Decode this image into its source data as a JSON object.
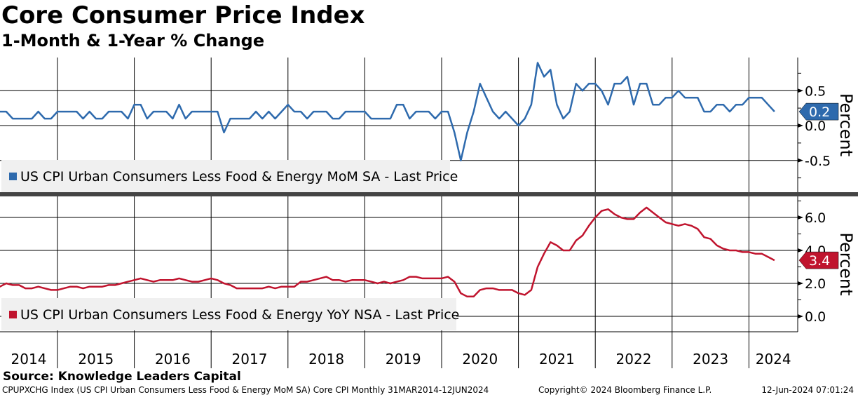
{
  "title": "Core Consumer Price Index",
  "subtitle": "1-Month & 1-Year % Change",
  "source": "Source: Knowledge Leaders Capital",
  "footer": {
    "left": "CPUPXCHG Index (US CPI Urban Consumers Less Food & Energy MoM SA) Core CPI  Monthly 31MAR2014-12JUN2024",
    "center": "Copyright© 2024 Bloomberg Finance L.P.",
    "right": "12-Jun-2024 07:01:24"
  },
  "chart_data": [
    {
      "type": "line",
      "start": "2014-03",
      "frequency": "monthly",
      "ylabel": "Percent",
      "ylim": [
        -1.0,
        1.0
      ],
      "yticks": [
        "0.5",
        "0.0",
        "-0.5"
      ],
      "ytick_values": [
        0.5,
        0.0,
        -0.5
      ],
      "color": "#2e6aad",
      "legend": "US CPI Urban Consumers Less Food & Energy MoM SA - Last Price",
      "last_label": "0.2",
      "values": [
        0.2,
        0.2,
        0.2,
        0.1,
        0.1,
        0.1,
        0.1,
        0.2,
        0.1,
        0.1,
        0.2,
        0.2,
        0.2,
        0.2,
        0.1,
        0.2,
        0.1,
        0.1,
        0.2,
        0.2,
        0.2,
        0.1,
        0.3,
        0.3,
        0.1,
        0.2,
        0.2,
        0.2,
        0.1,
        0.3,
        0.1,
        0.2,
        0.2,
        0.2,
        0.2,
        0.2,
        -0.1,
        0.1,
        0.1,
        0.1,
        0.1,
        0.2,
        0.1,
        0.2,
        0.1,
        0.2,
        0.3,
        0.2,
        0.2,
        0.1,
        0.2,
        0.2,
        0.2,
        0.1,
        0.1,
        0.2,
        0.2,
        0.2,
        0.2,
        0.1,
        0.1,
        0.1,
        0.1,
        0.3,
        0.3,
        0.1,
        0.2,
        0.2,
        0.2,
        0.1,
        0.2,
        0.2,
        -0.1,
        -0.5,
        -0.1,
        0.2,
        0.6,
        0.4,
        0.2,
        0.1,
        0.2,
        0.1,
        0.0,
        0.1,
        0.3,
        0.9,
        0.7,
        0.8,
        0.3,
        0.1,
        0.2,
        0.6,
        0.5,
        0.6,
        0.6,
        0.5,
        0.3,
        0.6,
        0.6,
        0.7,
        0.3,
        0.6,
        0.6,
        0.3,
        0.3,
        0.4,
        0.4,
        0.5,
        0.4,
        0.4,
        0.4,
        0.2,
        0.2,
        0.3,
        0.3,
        0.2,
        0.3,
        0.3,
        0.4,
        0.4,
        0.4,
        0.3,
        0.2
      ]
    },
    {
      "type": "line",
      "start": "2014-03",
      "frequency": "monthly",
      "ylabel": "Percent",
      "ylim": [
        -1.0,
        7.2
      ],
      "yticks": [
        "6.0",
        "4.0",
        "2.0",
        "0.0"
      ],
      "ytick_values": [
        6,
        4,
        2,
        0
      ],
      "color": "#c0142e",
      "legend": "US CPI Urban Consumers Less Food & Energy YoY NSA - Last Price",
      "last_label": "3.4",
      "values": [
        1.7,
        1.8,
        2.0,
        1.9,
        1.9,
        1.7,
        1.7,
        1.8,
        1.7,
        1.6,
        1.6,
        1.7,
        1.8,
        1.8,
        1.7,
        1.8,
        1.8,
        1.8,
        1.9,
        1.9,
        2.0,
        2.1,
        2.2,
        2.3,
        2.2,
        2.1,
        2.2,
        2.2,
        2.2,
        2.3,
        2.2,
        2.1,
        2.1,
        2.2,
        2.3,
        2.2,
        2.0,
        1.9,
        1.7,
        1.7,
        1.7,
        1.7,
        1.7,
        1.8,
        1.7,
        1.8,
        1.8,
        1.8,
        2.1,
        2.1,
        2.2,
        2.3,
        2.4,
        2.2,
        2.2,
        2.1,
        2.2,
        2.2,
        2.2,
        2.1,
        2.0,
        2.1,
        2.0,
        2.1,
        2.2,
        2.4,
        2.4,
        2.3,
        2.3,
        2.3,
        2.3,
        2.4,
        2.1,
        1.4,
        1.2,
        1.2,
        1.6,
        1.7,
        1.7,
        1.6,
        1.6,
        1.6,
        1.4,
        1.3,
        1.6,
        3.0,
        3.8,
        4.5,
        4.3,
        4.0,
        4.0,
        4.6,
        4.9,
        5.5,
        6.0,
        6.4,
        6.5,
        6.2,
        6.0,
        5.9,
        5.9,
        6.3,
        6.6,
        6.3,
        6.0,
        5.7,
        5.6,
        5.5,
        5.6,
        5.5,
        5.3,
        4.8,
        4.7,
        4.3,
        4.1,
        4.0,
        4.0,
        3.9,
        3.9,
        3.8,
        3.8,
        3.6,
        3.4
      ]
    }
  ],
  "x_labels": [
    "2014",
    "2015",
    "2016",
    "2017",
    "2018",
    "2019",
    "2020",
    "2021",
    "2022",
    "2023",
    "2024"
  ]
}
